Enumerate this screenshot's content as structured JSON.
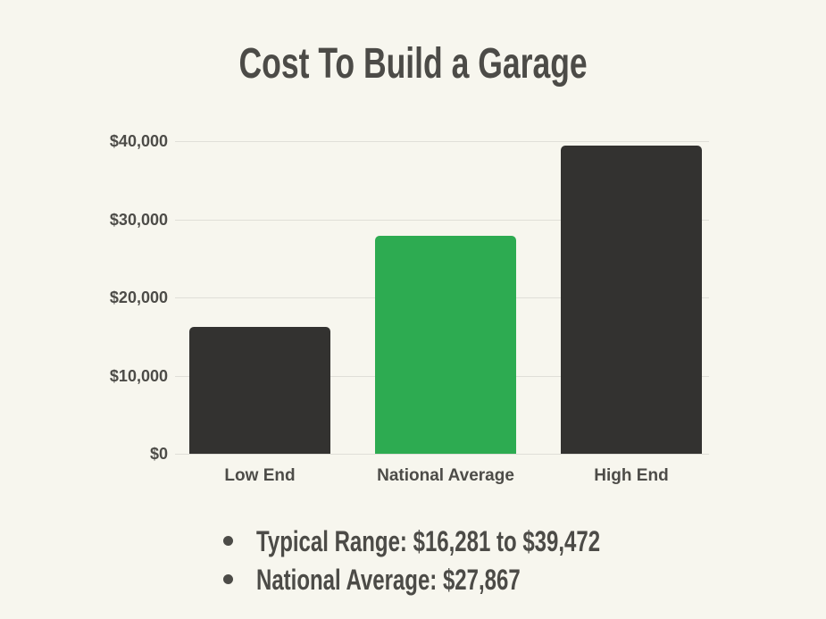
{
  "title": "Cost To Build a Garage",
  "chart_data": {
    "type": "bar",
    "title": "Cost To Build a Garage",
    "categories": [
      "Low End",
      "National Average",
      "High End"
    ],
    "values": [
      16281,
      27867,
      39472
    ],
    "bar_colors": [
      "#333230",
      "#2dab51",
      "#333230"
    ],
    "xlabel": "",
    "ylabel": "",
    "ylim": [
      0,
      40000
    ],
    "yticks": [
      {
        "value": 0,
        "label": "$0"
      },
      {
        "value": 10000,
        "label": "$10,000"
      },
      {
        "value": 20000,
        "label": "$20,000"
      },
      {
        "value": 30000,
        "label": "$30,000"
      },
      {
        "value": 40000,
        "label": "$40,000"
      }
    ],
    "grid": true,
    "legend_position": "none"
  },
  "notes": {
    "items": [
      "Typical Range: $16,281 to $39,472",
      "National Average: $27,867"
    ]
  },
  "colors": {
    "background": "#f7f6ee",
    "bar_dark": "#333230",
    "bar_green": "#2dab51",
    "gridline": "#e0dfd8",
    "text": "#4c4b47"
  }
}
